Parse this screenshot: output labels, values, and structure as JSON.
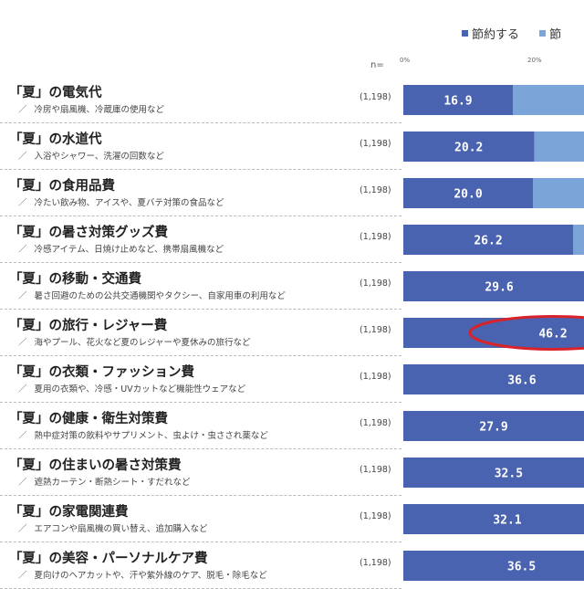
{
  "chart_data": {
    "type": "bar",
    "orientation": "horizontal",
    "stacked": true,
    "legend": [
      "節約する",
      "節"
    ],
    "n_header": "n=",
    "ticks": [
      "0%",
      "20%"
    ],
    "xlim": [
      0,
      100
    ],
    "categories": [
      {
        "title": "「夏」の電気代",
        "sub": "冷房や扇風機、冷蔵庫の使用など",
        "n": "(1,198)"
      },
      {
        "title": "「夏」の水道代",
        "sub": "入浴やシャワー、洗濯の回数など",
        "n": "(1,198)"
      },
      {
        "title": "「夏」の食用品費",
        "sub": "冷たい飲み物、アイスや、夏バテ対策の食品など",
        "n": "(1,198)"
      },
      {
        "title": "「夏」の暑さ対策グッズ費",
        "sub": "冷感アイテム、日焼け止めなど、携帯扇風機など",
        "n": "(1,198)"
      },
      {
        "title": "「夏」の移動・交通費",
        "sub": "暑さ回避のための公共交通機関やタクシー、自家用車の利用など",
        "n": "(1,198)"
      },
      {
        "title": "「夏」の旅行・レジャー費",
        "sub": "海やプール、花火など夏のレジャーや夏休みの旅行など",
        "n": "(1,198)"
      },
      {
        "title": "「夏」の衣類・ファッション費",
        "sub": "夏用の衣類や、冷感・UVカットなど機能性ウェアなど",
        "n": "(1,198)"
      },
      {
        "title": "「夏」の健康・衛生対策費",
        "sub": "熱中症対策の飲料やサプリメント、虫よけ・虫さされ薬など",
        "n": "(1,198)"
      },
      {
        "title": "「夏」の住まいの暑さ対策費",
        "sub": "遮熱カーテン・断熱シート・すだれなど",
        "n": "(1,198)"
      },
      {
        "title": "「夏」の家電関連費",
        "sub": "エアコンや扇風機の買い替え、追加購入など",
        "n": "(1,198)"
      },
      {
        "title": "「夏」の美容・パーソナルケア費",
        "sub": "夏向けのヘアカットや、汗や紫外線のケア、脱毛・除毛など",
        "n": "(1,198)"
      }
    ],
    "series": [
      {
        "name": "節約する",
        "values": [
          16.9,
          20.2,
          20.0,
          26.2,
          29.6,
          46.2,
          36.6,
          27.9,
          32.5,
          32.1,
          36.5
        ]
      }
    ],
    "highlight_index": 5,
    "colors": {
      "primary": "#4a63b0",
      "secondary": "#7ba4d8",
      "highlight": "#d8232a"
    }
  }
}
